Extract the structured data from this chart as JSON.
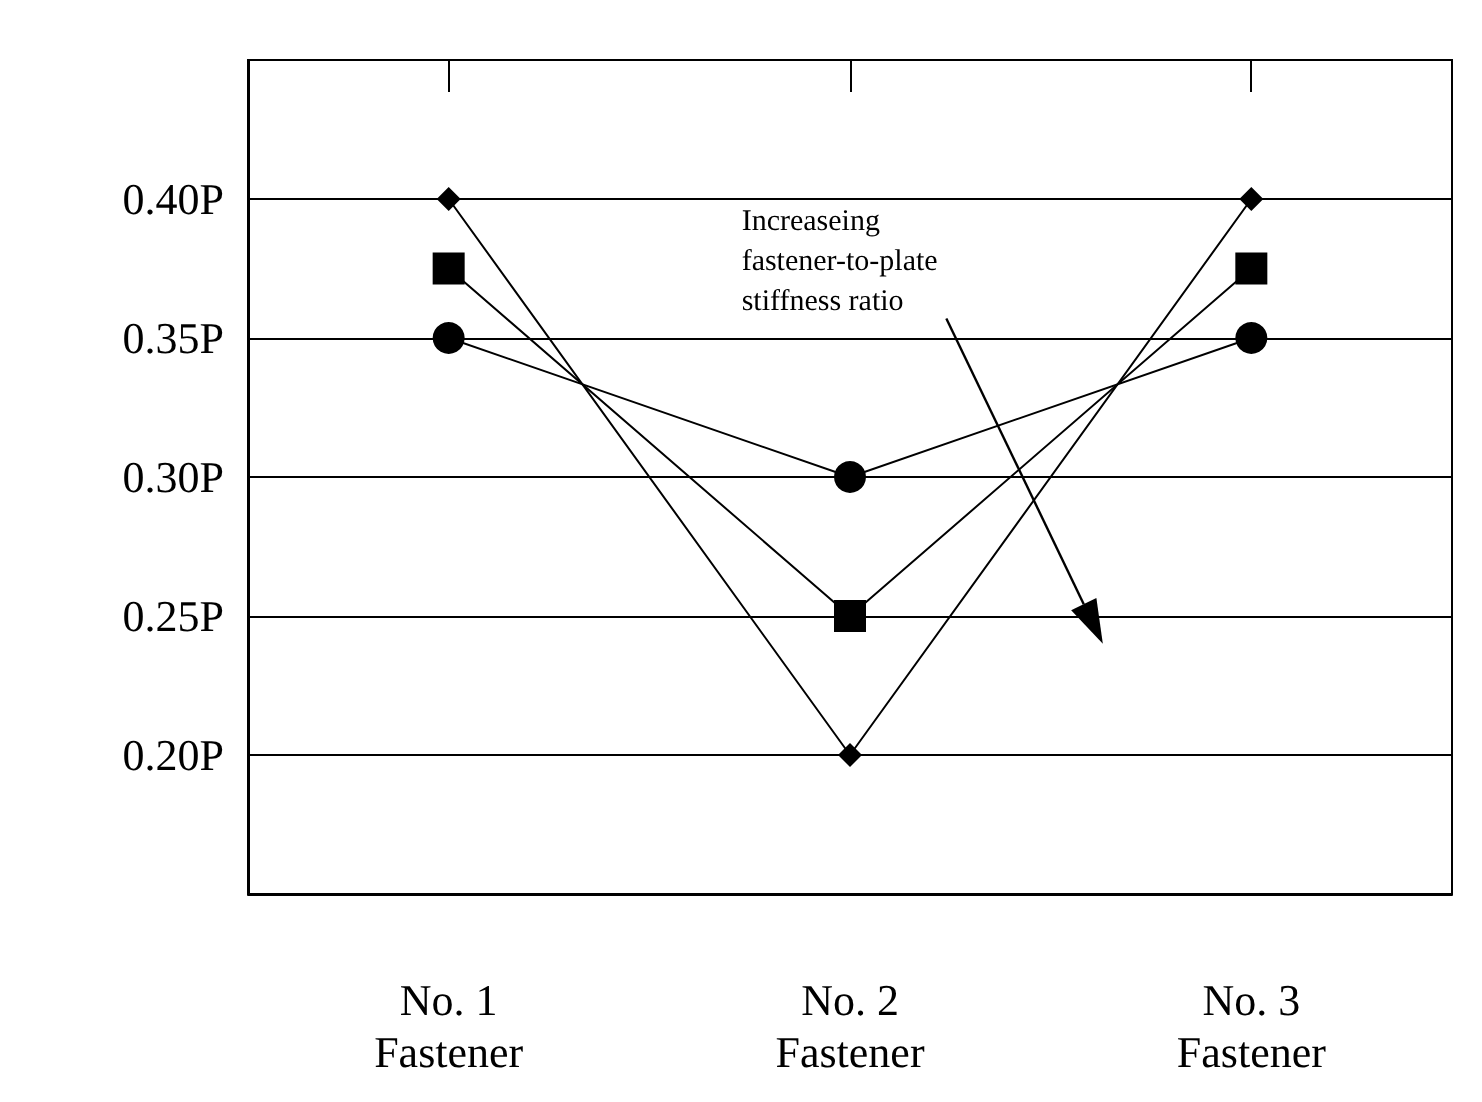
{
  "chart_data": {
    "type": "line",
    "categories": [
      "No. 1\nFastener",
      "No. 2\nFastener",
      "No. 3\nFastener"
    ],
    "series": [
      {
        "color": "#000000",
        "marker": "circle",
        "values": [
          0.35,
          0.3,
          0.35
        ]
      },
      {
        "color": "#000000",
        "marker": "square",
        "values": [
          0.375,
          0.25,
          0.375
        ]
      },
      {
        "color": "#000000",
        "marker": "diamond",
        "values": [
          0.4,
          0.2,
          0.4
        ]
      }
    ],
    "ylim": [
      0.15,
      0.45
    ],
    "yticks": [
      {
        "value": 0.2,
        "label": "0.20P"
      },
      {
        "value": 0.25,
        "label": "0.25P"
      },
      {
        "value": 0.3,
        "label": "0.30P"
      },
      {
        "value": 0.35,
        "label": "0.35P"
      },
      {
        "value": 0.4,
        "label": "0.40P"
      }
    ],
    "grid": "y",
    "line_style": "solid",
    "annotations": [
      "Increaseing\nfastener-to-plate\nstiffness ratio"
    ]
  }
}
